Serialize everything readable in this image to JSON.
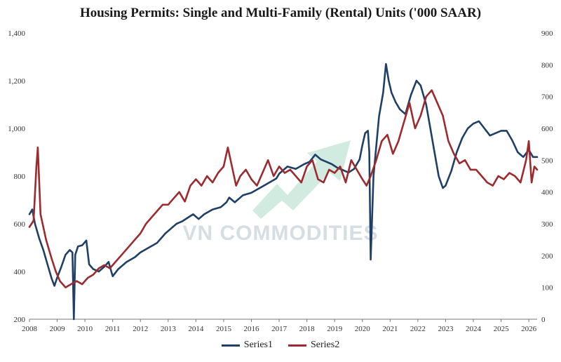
{
  "watermark": "VN COMMODITIES",
  "chart_data": {
    "type": "line",
    "title": "Housing Permits: Single and Multi-Family (Rental) Units  ('000 SAAR)",
    "xlabel": "",
    "ylabel": "",
    "x_ticks": [
      "2008",
      "2009",
      "2010",
      "2011",
      "2012",
      "2013",
      "2014",
      "2015",
      "2016",
      "2017",
      "2018",
      "2019",
      "2020",
      "2021",
      "2022",
      "2023",
      "2024",
      "2025",
      "2026"
    ],
    "y_left_ticks": [
      "200",
      "400",
      "600",
      "800",
      "1,000",
      "1,200",
      "1,400"
    ],
    "y_right_ticks": [
      "0",
      "100",
      "200",
      "300",
      "400",
      "500",
      "600",
      "700",
      "800",
      "900"
    ],
    "ylim_left": [
      200,
      1400
    ],
    "ylim_right": [
      0,
      900
    ],
    "xlim": [
      2008,
      2026.3
    ],
    "grid": false,
    "legend_position": "bottom",
    "colors": {
      "series1": "#1f3f66",
      "series2": "#9c2a2e",
      "arrow": "#bfe3d3"
    },
    "series": [
      {
        "name": "Series1",
        "axis": "left",
        "x": [
          2008.0,
          2008.1,
          2008.2,
          2008.35,
          2008.5,
          2008.65,
          2008.8,
          2008.9,
          2009.0,
          2009.15,
          2009.3,
          2009.45,
          2009.55,
          2009.6,
          2009.65,
          2009.75,
          2009.9,
          2010.05,
          2010.15,
          2010.3,
          2010.5,
          2010.7,
          2010.85,
          2011.0,
          2011.2,
          2011.5,
          2011.8,
          2012.0,
          2012.3,
          2012.6,
          2012.9,
          2013.1,
          2013.3,
          2013.5,
          2013.7,
          2013.9,
          2014.1,
          2014.3,
          2014.6,
          2014.9,
          2015.1,
          2015.2,
          2015.4,
          2015.7,
          2016.0,
          2016.3,
          2016.6,
          2016.9,
          2017.0,
          2017.3,
          2017.6,
          2017.9,
          2018.1,
          2018.3,
          2018.5,
          2018.7,
          2018.9,
          2019.1,
          2019.3,
          2019.5,
          2019.7,
          2019.9,
          2020.0,
          2020.1,
          2020.2,
          2020.25,
          2020.3,
          2020.4,
          2020.6,
          2020.75,
          2020.85,
          2020.95,
          2021.05,
          2021.2,
          2021.35,
          2021.55,
          2021.75,
          2021.95,
          2022.1,
          2022.3,
          2022.45,
          2022.6,
          2022.75,
          2022.9,
          2023.0,
          2023.2,
          2023.4,
          2023.6,
          2023.8,
          2024.0,
          2024.2,
          2024.4,
          2024.6,
          2024.8,
          2025.0,
          2025.2,
          2025.4,
          2025.6,
          2025.8,
          2026.0,
          2026.15,
          2026.3
        ],
        "values": [
          640,
          660,
          600,
          540,
          490,
          430,
          370,
          340,
          375,
          420,
          470,
          490,
          480,
          200,
          470,
          505,
          510,
          530,
          430,
          410,
          400,
          420,
          440,
          380,
          410,
          440,
          460,
          480,
          500,
          520,
          560,
          580,
          600,
          610,
          625,
          640,
          620,
          640,
          660,
          670,
          690,
          710,
          690,
          720,
          730,
          750,
          770,
          790,
          810,
          840,
          830,
          850,
          860,
          890,
          870,
          860,
          850,
          835,
          825,
          815,
          830,
          870,
          930,
          980,
          990,
          900,
          450,
          800,
          1050,
          1150,
          1270,
          1200,
          1150,
          1110,
          1080,
          1060,
          1140,
          1200,
          1180,
          1100,
          1000,
          900,
          800,
          750,
          760,
          820,
          900,
          960,
          1000,
          1020,
          1030,
          1000,
          970,
          980,
          990,
          990,
          950,
          900,
          880,
          910,
          880,
          880
        ]
      },
      {
        "name": "Series2",
        "axis": "right",
        "x": [
          2008.0,
          2008.15,
          2008.25,
          2008.3,
          2008.4,
          2008.6,
          2008.8,
          2008.95,
          2009.1,
          2009.3,
          2009.5,
          2009.7,
          2009.9,
          2010.1,
          2010.3,
          2010.5,
          2010.7,
          2010.9,
          2011.1,
          2011.3,
          2011.5,
          2011.7,
          2011.9,
          2012.0,
          2012.2,
          2012.4,
          2012.6,
          2012.8,
          2013.0,
          2013.2,
          2013.4,
          2013.6,
          2013.8,
          2014.0,
          2014.2,
          2014.4,
          2014.6,
          2014.8,
          2015.0,
          2015.15,
          2015.3,
          2015.45,
          2015.6,
          2015.8,
          2016.0,
          2016.2,
          2016.4,
          2016.6,
          2016.8,
          2017.0,
          2017.2,
          2017.4,
          2017.6,
          2017.8,
          2018.0,
          2018.2,
          2018.4,
          2018.6,
          2018.8,
          2019.0,
          2019.2,
          2019.4,
          2019.6,
          2019.8,
          2020.0,
          2020.15,
          2020.3,
          2020.5,
          2020.7,
          2020.9,
          2021.1,
          2021.3,
          2021.5,
          2021.7,
          2021.9,
          2022.1,
          2022.3,
          2022.5,
          2022.7,
          2022.9,
          2023.1,
          2023.3,
          2023.5,
          2023.7,
          2023.9,
          2024.1,
          2024.3,
          2024.5,
          2024.7,
          2024.9,
          2025.1,
          2025.3,
          2025.5,
          2025.7,
          2025.9,
          2026.0,
          2026.1,
          2026.2,
          2026.3
        ],
        "values": [
          290,
          310,
          480,
          540,
          330,
          250,
          190,
          150,
          120,
          100,
          110,
          120,
          110,
          130,
          140,
          160,
          170,
          160,
          180,
          200,
          220,
          240,
          260,
          270,
          300,
          320,
          340,
          360,
          360,
          380,
          400,
          370,
          420,
          440,
          420,
          450,
          430,
          460,
          480,
          540,
          480,
          420,
          450,
          470,
          440,
          420,
          460,
          500,
          450,
          480,
          460,
          470,
          450,
          430,
          480,
          500,
          440,
          430,
          470,
          460,
          480,
          430,
          500,
          470,
          440,
          420,
          450,
          500,
          560,
          580,
          520,
          560,
          620,
          680,
          600,
          640,
          700,
          720,
          680,
          640,
          560,
          520,
          490,
          500,
          470,
          470,
          450,
          430,
          420,
          450,
          440,
          460,
          450,
          430,
          500,
          560,
          430,
          480,
          470
        ]
      }
    ]
  }
}
